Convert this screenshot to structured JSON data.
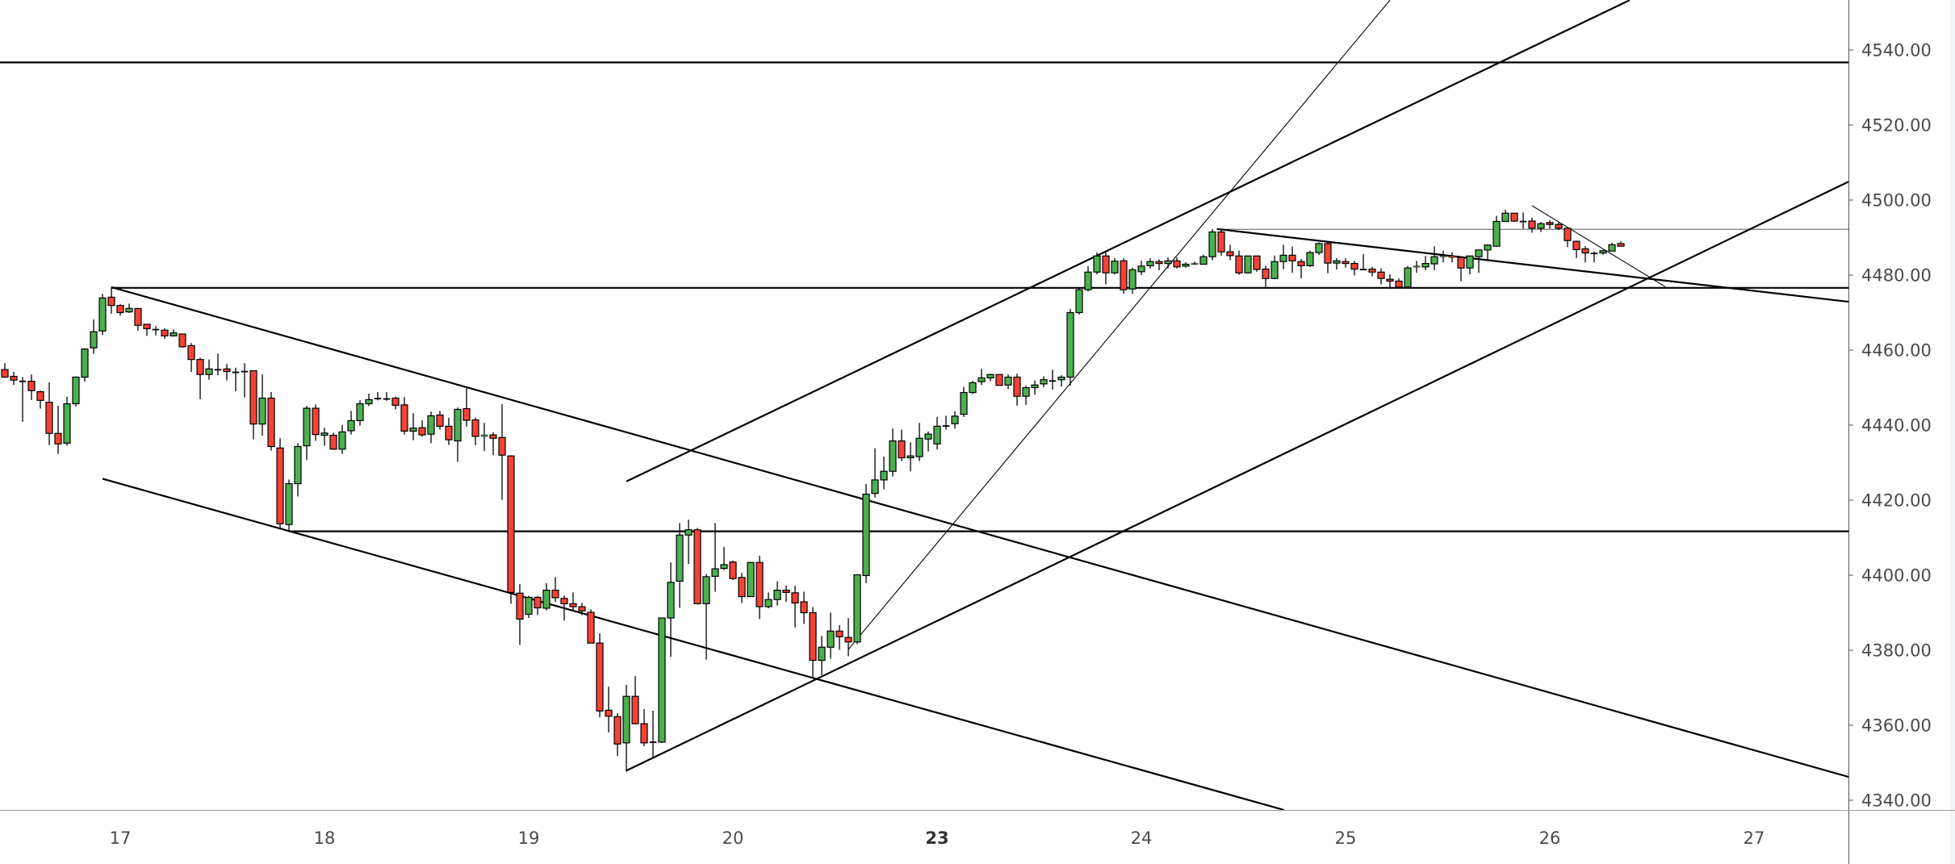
{
  "chart_data": {
    "type": "candlestick",
    "title": "",
    "ylim": [
      4336,
      4553
    ],
    "grid": false,
    "colors": {
      "up": "#4caf50",
      "down": "#f44336",
      "outline": "#000000",
      "drawing": "#000000",
      "drawing_gray": "#7a7a7a",
      "axis_text": "#4a4a4a"
    },
    "candle_fields": [
      "open",
      "high",
      "low",
      "close"
    ],
    "candles": [
      [
        4454.8,
        4456.5,
        4452.6,
        4452.8
      ],
      [
        4453.0,
        4454.2,
        4450.7,
        4452.0
      ],
      [
        4451.8,
        4452.8,
        4440.9,
        4451.8
      ],
      [
        4451.7,
        4453.5,
        4446.7,
        4449.2
      ],
      [
        4448.9,
        4449.2,
        4444.4,
        4446.6
      ],
      [
        4446.1,
        4451.4,
        4434.7,
        4437.8
      ],
      [
        4437.8,
        4445.2,
        4432.3,
        4435.0
      ],
      [
        4435.2,
        4447.6,
        4434.5,
        4445.7
      ],
      [
        4445.7,
        4453.0,
        4445.0,
        4452.8
      ],
      [
        4452.8,
        4460.5,
        4451.6,
        4460.3
      ],
      [
        4460.6,
        4468.2,
        4459.0,
        4464.9
      ],
      [
        4465.1,
        4475.0,
        4464.0,
        4473.9
      ],
      [
        4474.1,
        4476.8,
        4469.7,
        4471.9
      ],
      [
        4471.9,
        4472.3,
        4469.2,
        4470.0
      ],
      [
        4470.2,
        4472.4,
        4469.9,
        4471.1
      ],
      [
        4471.1,
        4471.2,
        4465.2,
        4466.6
      ],
      [
        4466.9,
        4467.0,
        4463.8,
        4465.7
      ],
      [
        4465.6,
        4466.4,
        4463.9,
        4465.6
      ],
      [
        4465.3,
        4465.8,
        4463.0,
        4463.8
      ],
      [
        4463.8,
        4465.5,
        4463.6,
        4464.6
      ],
      [
        4464.3,
        4464.3,
        4460.6,
        4460.9
      ],
      [
        4461.2,
        4461.9,
        4454.2,
        4457.5
      ],
      [
        4457.5,
        4458.0,
        4446.9,
        4453.5
      ],
      [
        4453.5,
        4457.5,
        4452.1,
        4455.0
      ],
      [
        4454.9,
        4459.1,
        4453.3,
        4454.9
      ],
      [
        4455.0,
        4456.3,
        4451.9,
        4454.3
      ],
      [
        4454.2,
        4455.3,
        4449.0,
        4454.2
      ],
      [
        4454.4,
        4456.5,
        4447.4,
        4454.4
      ],
      [
        4454.5,
        4454.6,
        4436.2,
        4440.3
      ],
      [
        4440.3,
        4453.5,
        4437.2,
        4447.2
      ],
      [
        4447.2,
        4448.8,
        4433.2,
        4434.3
      ],
      [
        4433.9,
        4436.5,
        4412.2,
        4413.7
      ],
      [
        4413.5,
        4425.5,
        4411.5,
        4424.4
      ],
      [
        4424.4,
        4435.2,
        4421.0,
        4434.3
      ],
      [
        4434.5,
        4445.1,
        4430.7,
        4444.5
      ],
      [
        4444.5,
        4445.5,
        4435.8,
        4437.5
      ],
      [
        4437.3,
        4439.3,
        4434.5,
        4437.9
      ],
      [
        4437.3,
        4438.0,
        4433.4,
        4433.6
      ],
      [
        4433.6,
        4440.1,
        4432.3,
        4438.2
      ],
      [
        4438.5,
        4443.8,
        4437.5,
        4441.2
      ],
      [
        4441.2,
        4446.7,
        4439.9,
        4445.7
      ],
      [
        4445.7,
        4448.4,
        4445.1,
        4446.8
      ],
      [
        4447.2,
        4448.8,
        4446.6,
        4447.2
      ],
      [
        4447.1,
        4448.8,
        4446.5,
        4447.1
      ],
      [
        4447.2,
        4447.6,
        4444.2,
        4445.3
      ],
      [
        4445.4,
        4447.5,
        4437.5,
        4438.4
      ],
      [
        4438.4,
        4443.2,
        4436.0,
        4439.2
      ],
      [
        4439.3,
        4441.3,
        4436.9,
        4437.4
      ],
      [
        4437.6,
        4443.6,
        4435.2,
        4442.5
      ],
      [
        4442.7,
        4443.8,
        4438.8,
        4439.7
      ],
      [
        4439.7,
        4442.0,
        4434.7,
        4436.1
      ],
      [
        4435.8,
        4444.7,
        4430.2,
        4444.2
      ],
      [
        4444.4,
        4449.8,
        4439.6,
        4441.3
      ],
      [
        4441.4,
        4442.0,
        4434.7,
        4437.0
      ],
      [
        4437.0,
        4440.6,
        4433.1,
        4437.4
      ],
      [
        4437.4,
        4438.1,
        4432.0,
        4436.5
      ],
      [
        4436.7,
        4445.6,
        4420.1,
        4432.0
      ],
      [
        4431.8,
        4432.0,
        4392.4,
        4395.4
      ],
      [
        4395.2,
        4397.6,
        4381.4,
        4388.3
      ],
      [
        4389.6,
        4394.5,
        4388.6,
        4394.1
      ],
      [
        4394.1,
        4394.5,
        4389.4,
        4391.3
      ],
      [
        4391.2,
        4397.9,
        4390.6,
        4396.0
      ],
      [
        4396.0,
        4399.5,
        4392.9,
        4394.0
      ],
      [
        4393.8,
        4394.6,
        4387.9,
        4392.4
      ],
      [
        4392.4,
        4395.4,
        4390.4,
        4391.6
      ],
      [
        4391.6,
        4392.6,
        4389.4,
        4390.5
      ],
      [
        4390.1,
        4390.9,
        4381.9,
        4381.9
      ],
      [
        4381.9,
        4384.5,
        4362.1,
        4363.8
      ],
      [
        4364.0,
        4370.3,
        4358.1,
        4362.4
      ],
      [
        4362.3,
        4363.2,
        4351.8,
        4355.0
      ],
      [
        4355.3,
        4370.8,
        4347.6,
        4367.7
      ],
      [
        4367.7,
        4373.1,
        4360.2,
        4360.4
      ],
      [
        4360.4,
        4364.3,
        4354.4,
        4355.3
      ],
      [
        4355.6,
        4363.9,
        4351.2,
        4355.6
      ],
      [
        4355.5,
        4388.6,
        4355.3,
        4388.6
      ],
      [
        4388.6,
        4403.4,
        4378.2,
        4398.1
      ],
      [
        4398.4,
        4413.9,
        4391.3,
        4410.7
      ],
      [
        4410.7,
        4414.8,
        4403.0,
        4412.1
      ],
      [
        4412.1,
        4412.6,
        4392.2,
        4392.4
      ],
      [
        4392.4,
        4400.3,
        4377.5,
        4399.6
      ],
      [
        4399.7,
        4413.9,
        4395.6,
        4401.7
      ],
      [
        4401.8,
        4407.5,
        4401.4,
        4402.8
      ],
      [
        4403.5,
        4403.9,
        4398.7,
        4399.1
      ],
      [
        4399.4,
        4400.6,
        4392.6,
        4394.3
      ],
      [
        4394.3,
        4403.4,
        4394.2,
        4403.4
      ],
      [
        4403.4,
        4405.2,
        4388.3,
        4391.6
      ],
      [
        4391.6,
        4395.4,
        4391.2,
        4393.5
      ],
      [
        4393.5,
        4398.4,
        4391.9,
        4396.0
      ],
      [
        4396.0,
        4397.2,
        4392.9,
        4395.4
      ],
      [
        4395.3,
        4397.2,
        4386.1,
        4392.6
      ],
      [
        4392.9,
        4395.6,
        4387.0,
        4390.0
      ],
      [
        4390.0,
        4391.5,
        4372.7,
        4377.3
      ],
      [
        4377.3,
        4383.8,
        4373.4,
        4380.8
      ],
      [
        4380.8,
        4390.0,
        4377.7,
        4385.1
      ],
      [
        4385.1,
        4386.7,
        4380.1,
        4383.6
      ],
      [
        4383.4,
        4388.6,
        4378.4,
        4382.2
      ],
      [
        4382.2,
        4400.1,
        4381.6,
        4400.1
      ],
      [
        4399.9,
        4424.3,
        4397.9,
        4421.6
      ],
      [
        4421.8,
        4433.8,
        4420.7,
        4425.4
      ],
      [
        4425.4,
        4431.6,
        4422.9,
        4427.7
      ],
      [
        4427.7,
        4439.1,
        4426.3,
        4435.8
      ],
      [
        4435.8,
        4438.8,
        4430.4,
        4431.3
      ],
      [
        4431.3,
        4435.4,
        4427.7,
        4431.8
      ],
      [
        4431.6,
        4440.6,
        4430.4,
        4436.5
      ],
      [
        4436.3,
        4438.3,
        4433.0,
        4437.6
      ],
      [
        4435.0,
        4442.2,
        4433.5,
        4439.7
      ],
      [
        4439.9,
        4442.5,
        4438.8,
        4439.9
      ],
      [
        4440.4,
        4443.7,
        4439.1,
        4442.4
      ],
      [
        4442.9,
        4450.2,
        4442.2,
        4448.7
      ],
      [
        4448.7,
        4451.8,
        4448.3,
        4451.3
      ],
      [
        4451.6,
        4455.0,
        4450.7,
        4452.6
      ],
      [
        4452.6,
        4453.7,
        4451.7,
        4453.5
      ],
      [
        4453.5,
        4453.5,
        4450.6,
        4450.6
      ],
      [
        4450.7,
        4453.5,
        4449.6,
        4452.8
      ],
      [
        4452.8,
        4453.7,
        4445.2,
        4447.7
      ],
      [
        4447.7,
        4450.5,
        4445.4,
        4450.0
      ],
      [
        4450.0,
        4451.9,
        4448.1,
        4450.7
      ],
      [
        4451.0,
        4453.0,
        4450.1,
        4452.1
      ],
      [
        4451.9,
        4454.8,
        4449.5,
        4451.9
      ],
      [
        4452.1,
        4453.3,
        4450.3,
        4452.8
      ],
      [
        4452.8,
        4471.0,
        4450.5,
        4470.0
      ],
      [
        4470.0,
        4476.5,
        4469.5,
        4476.1
      ],
      [
        4476.1,
        4482.4,
        4475.6,
        4480.8
      ],
      [
        4480.8,
        4486.1,
        4480.2,
        4485.1
      ],
      [
        4485.1,
        4486.0,
        4477.5,
        4480.6
      ],
      [
        4480.6,
        4484.5,
        4480.2,
        4483.7
      ],
      [
        4483.8,
        4484.5,
        4475.0,
        4476.1
      ],
      [
        4476.3,
        4482.0,
        4475.0,
        4481.4
      ],
      [
        4480.9,
        4483.8,
        4480.0,
        4482.4
      ],
      [
        4482.5,
        4484.5,
        4481.8,
        4483.6
      ],
      [
        4483.6,
        4484.2,
        4481.3,
        4483.1
      ],
      [
        4483.1,
        4484.7,
        4481.8,
        4483.8
      ],
      [
        4483.8,
        4484.7,
        4481.8,
        4482.2
      ],
      [
        4482.4,
        4483.4,
        4482.0,
        4482.9
      ],
      [
        4482.9,
        4483.6,
        4482.7,
        4483.1
      ],
      [
        4482.9,
        4485.4,
        4482.9,
        4484.9
      ],
      [
        4484.9,
        4492.3,
        4484.0,
        4491.5
      ],
      [
        4491.5,
        4492.0,
        4485.2,
        4486.2
      ],
      [
        4486.2,
        4488.1,
        4484.0,
        4485.2
      ],
      [
        4485.1,
        4486.5,
        4480.1,
        4480.6
      ],
      [
        4480.6,
        4485.1,
        4480.4,
        4485.1
      ],
      [
        4485.1,
        4485.1,
        4480.9,
        4481.5
      ],
      [
        4481.6,
        4482.5,
        4476.8,
        4479.1
      ],
      [
        4479.1,
        4485.2,
        4478.9,
        4483.6
      ],
      [
        4483.6,
        4488.1,
        4481.6,
        4485.3
      ],
      [
        4485.3,
        4487.6,
        4480.6,
        4483.8
      ],
      [
        4483.6,
        4484.3,
        4479.1,
        4482.5
      ],
      [
        4482.5,
        4486.5,
        4482.2,
        4486.0
      ],
      [
        4486.0,
        4488.7,
        4485.4,
        4488.4
      ],
      [
        4488.4,
        4488.8,
        4480.5,
        4483.2
      ],
      [
        4483.2,
        4484.5,
        4481.5,
        4483.8
      ],
      [
        4483.6,
        4484.5,
        4482.0,
        4483.1
      ],
      [
        4483.1,
        4483.8,
        4479.9,
        4481.6
      ],
      [
        4481.6,
        4485.6,
        4481.5,
        4481.6
      ],
      [
        4481.6,
        4482.2,
        4479.7,
        4480.8
      ],
      [
        4480.8,
        4481.8,
        4477.5,
        4479.1
      ],
      [
        4478.9,
        4480.2,
        4476.3,
        4478.4
      ],
      [
        4478.4,
        4479.1,
        4476.8,
        4476.8
      ],
      [
        4476.8,
        4482.4,
        4476.8,
        4481.9
      ],
      [
        4482.2,
        4483.8,
        4480.6,
        4482.4
      ],
      [
        4482.2,
        4485.1,
        4481.3,
        4483.1
      ],
      [
        4483.0,
        4487.7,
        4481.3,
        4484.9
      ],
      [
        4484.9,
        4486.5,
        4483.4,
        4485.2
      ],
      [
        4485.1,
        4486.1,
        4483.4,
        4484.7
      ],
      [
        4484.7,
        4484.9,
        4478.3,
        4481.9
      ],
      [
        4481.9,
        4485.1,
        4480.2,
        4485.1
      ],
      [
        4484.9,
        4486.8,
        4480.6,
        4486.7
      ],
      [
        4486.7,
        4488.2,
        4484.2,
        4488.0
      ],
      [
        4487.7,
        4495.8,
        4487.5,
        4494.3
      ],
      [
        4494.3,
        4497.4,
        4494.2,
        4496.5
      ],
      [
        4496.5,
        4496.5,
        4494.2,
        4494.4
      ],
      [
        4494.4,
        4496.7,
        4492.4,
        4494.4
      ],
      [
        4494.4,
        4495.3,
        4491.3,
        4492.5
      ],
      [
        4492.5,
        4494.2,
        4491.5,
        4493.7
      ],
      [
        4494.0,
        4494.6,
        4492.4,
        4493.5
      ],
      [
        4493.5,
        4494.0,
        4492.0,
        4492.5
      ],
      [
        4492.5,
        4492.8,
        4487.5,
        4489.2
      ],
      [
        4489.0,
        4489.2,
        4484.5,
        4486.8
      ],
      [
        4487.0,
        4487.7,
        4483.4,
        4485.9
      ],
      [
        4485.9,
        4486.3,
        4483.4,
        4485.9
      ],
      [
        4485.9,
        4486.7,
        4485.4,
        4486.5
      ],
      [
        4486.4,
        4488.6,
        4486.4,
        4488.1
      ],
      [
        4488.4,
        4489.0,
        4487.7,
        4487.7
      ]
    ],
    "y_ticks": [
      {
        "value": 4540,
        "label": "4540.00"
      },
      {
        "value": 4520,
        "label": "4520.00"
      },
      {
        "value": 4500,
        "label": "4500.00"
      },
      {
        "value": 4480,
        "label": "4480.00"
      },
      {
        "value": 4460,
        "label": "4460.00"
      },
      {
        "value": 4440,
        "label": "4440.00"
      },
      {
        "value": 4420,
        "label": "4420.00"
      },
      {
        "value": 4400,
        "label": "4400.00"
      },
      {
        "value": 4380,
        "label": "4380.00"
      },
      {
        "value": 4360,
        "label": "4360.00"
      },
      {
        "value": 4340,
        "label": "4340.00"
      }
    ],
    "x_ticks": [
      {
        "label": "17",
        "index": 13,
        "bold": false
      },
      {
        "label": "18",
        "index": 36,
        "bold": false
      },
      {
        "label": "19",
        "index": 59,
        "bold": false
      },
      {
        "label": "20",
        "index": 82,
        "bold": false
      },
      {
        "label": "23",
        "index": 105,
        "bold": true
      },
      {
        "label": "24",
        "index": 128,
        "bold": false
      },
      {
        "label": "25",
        "index": 151,
        "bold": false
      },
      {
        "label": "26",
        "index": 174,
        "bold": false
      },
      {
        "label": "27",
        "index": 197,
        "bold": false
      }
    ],
    "drawings": {
      "horizontal_lines": [
        {
          "price": 4536.7,
          "from_index": -1,
          "style": "thick"
        },
        {
          "price": 4476.6,
          "from_index": 12,
          "style": "thick"
        },
        {
          "price": 4411.7,
          "from_index": 32,
          "style": "thick"
        },
        {
          "price": 4492.2,
          "from_index": 136.5,
          "style": "thin-gray"
        }
      ],
      "trend_lines": [
        {
          "from": [
            12,
            4476.8
          ],
          "to": [
            208,
            4346.0
          ],
          "style": "thick"
        },
        {
          "from": [
            11,
            4425.7
          ],
          "to": [
            208,
            4295.0
          ],
          "style": "thick"
        },
        {
          "from": [
            70,
            4425.0
          ],
          "to": [
            183,
            4553.3
          ],
          "style": "thick"
        },
        {
          "from": [
            70,
            4347.9
          ],
          "to": [
            208,
            4505.3
          ],
          "style": "thick"
        },
        {
          "from": [
            95,
            4380.2
          ],
          "to": [
            156,
            4553.3
          ],
          "style": "thin"
        },
        {
          "from": [
            136.5,
            4492.3
          ],
          "to": [
            208,
            4472.8
          ],
          "style": "thick"
        },
        {
          "from": [
            172,
            4498.5
          ],
          "to": [
            187,
            4476.9
          ],
          "style": "thin"
        }
      ]
    }
  }
}
